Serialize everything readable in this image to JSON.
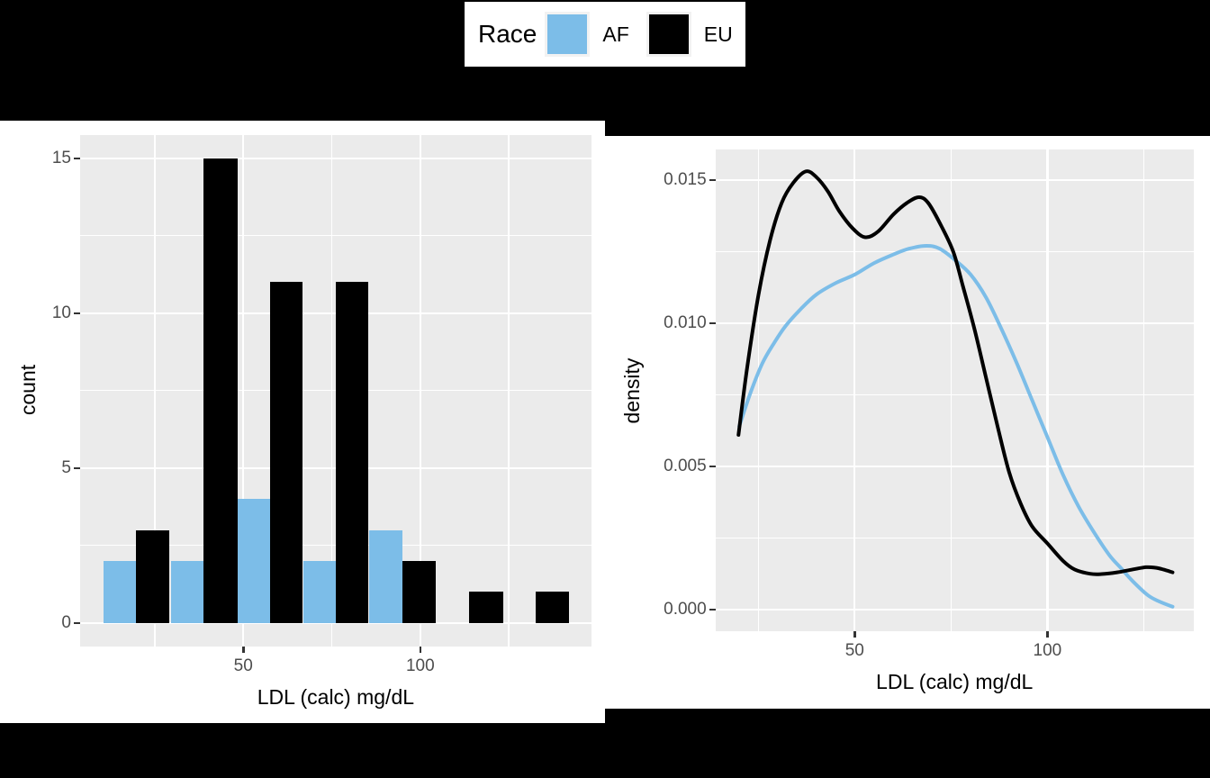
{
  "page": {
    "background": "#000000"
  },
  "legend": {
    "title": "Race",
    "entries": [
      {
        "label": "AF",
        "color": "#7CBDE8"
      },
      {
        "label": "EU",
        "color": "#000000"
      }
    ]
  },
  "colors": {
    "panel_background": "#EBEBEB",
    "gridline": "#FFFFFF",
    "tick_mark": "#333333",
    "tick_text": "#4D4D4D",
    "af_blue": "#7CBDE8",
    "eu_black": "#000000"
  },
  "chart_data": [
    {
      "type": "bar",
      "subtype": "dodged histogram",
      "title": "",
      "xlabel": "LDL (calc) mg/dL",
      "ylabel": "count",
      "xlim": [
        3.9,
        148.3
      ],
      "ylim": [
        -0.75,
        15.75
      ],
      "x_tick_values": [
        50,
        100
      ],
      "x_tick_labels": [
        "50",
        "100"
      ],
      "y_tick_values": [
        0,
        5,
        10,
        15
      ],
      "y_tick_labels": [
        "0",
        "5",
        "10",
        "15"
      ],
      "x_minor": [
        25,
        75,
        125
      ],
      "y_minor": [
        2.5,
        7.5,
        12.5
      ],
      "grid": true,
      "legend_position": "top",
      "series": [
        {
          "name": "AF",
          "color": "#7CBDE8",
          "bars": [
            {
              "x0": 10.4,
              "x1": 19.7,
              "count": 2
            },
            {
              "x0": 29.6,
              "x1": 38.7,
              "count": 2
            },
            {
              "x0": 48.4,
              "x1": 57.6,
              "count": 4
            },
            {
              "x0": 67.1,
              "x1": 76.2,
              "count": 2
            },
            {
              "x0": 85.6,
              "x1": 94.9,
              "count": 3
            }
          ]
        },
        {
          "name": "EU",
          "color": "#000000",
          "bars": [
            {
              "x0": 19.7,
              "x1": 29.1,
              "count": 3
            },
            {
              "x0": 38.7,
              "x1": 48.4,
              "count": 15
            },
            {
              "x0": 57.6,
              "x1": 66.7,
              "count": 11
            },
            {
              "x0": 76.2,
              "x1": 85.4,
              "count": 11
            },
            {
              "x0": 94.9,
              "x1": 104.4,
              "count": 2
            },
            {
              "x0": 113.8,
              "x1": 123.4,
              "count": 1
            },
            {
              "x0": 132.6,
              "x1": 142.1,
              "count": 1
            }
          ]
        }
      ]
    },
    {
      "type": "line",
      "subtype": "kernel density",
      "title": "",
      "xlabel": "LDL (calc) mg/dL",
      "ylabel": "density",
      "xlim": [
        13.9,
        137.9
      ],
      "ylim": [
        -0.000765,
        0.016065
      ],
      "x_tick_values": [
        50,
        100
      ],
      "x_tick_labels": [
        "50",
        "100"
      ],
      "y_tick_values": [
        0,
        0.005,
        0.01,
        0.015
      ],
      "y_tick_labels": [
        "0.000",
        "0.005",
        "0.010",
        "0.015"
      ],
      "x_minor": [
        25,
        75,
        125
      ],
      "y_minor": [
        0.0025,
        0.0075,
        0.0125
      ],
      "grid": true,
      "line_width": 4,
      "series": [
        {
          "name": "AF",
          "color": "#7CBDE8",
          "points": [
            [
              20,
              0.0064
            ],
            [
              23,
              0.0076
            ],
            [
              26,
              0.0086
            ],
            [
              29,
              0.0093
            ],
            [
              32,
              0.0099
            ],
            [
              36,
              0.0105
            ],
            [
              40,
              0.011
            ],
            [
              45,
              0.0114
            ],
            [
              50,
              0.0117
            ],
            [
              55,
              0.0121
            ],
            [
              60,
              0.0124
            ],
            [
              64,
              0.0126
            ],
            [
              68.6,
              0.0127
            ],
            [
              72,
              0.0126
            ],
            [
              76,
              0.0122
            ],
            [
              80,
              0.0117
            ],
            [
              84,
              0.0109
            ],
            [
              88,
              0.0098
            ],
            [
              92,
              0.0086
            ],
            [
              96,
              0.0073
            ],
            [
              100,
              0.006
            ],
            [
              104,
              0.0047
            ],
            [
              108,
              0.0036
            ],
            [
              112,
              0.0027
            ],
            [
              116,
              0.0019
            ],
            [
              119,
              0.00145
            ],
            [
              122,
              0.001
            ],
            [
              126,
              0.0005
            ],
            [
              129,
              0.00028
            ],
            [
              132.4,
              0.0001
            ]
          ]
        },
        {
          "name": "EU",
          "color": "#000000",
          "points": [
            [
              19.8,
              0.0061
            ],
            [
              22,
              0.0084
            ],
            [
              25,
              0.011
            ],
            [
              28,
              0.0129
            ],
            [
              31,
              0.0142
            ],
            [
              34,
              0.0149
            ],
            [
              37.3,
              0.0153
            ],
            [
              40,
              0.0151
            ],
            [
              43,
              0.0146
            ],
            [
              46,
              0.0139
            ],
            [
              49.5,
              0.0133
            ],
            [
              52.7,
              0.013
            ],
            [
              56,
              0.0132
            ],
            [
              60,
              0.0138
            ],
            [
              63.5,
              0.0142
            ],
            [
              66.6,
              0.0144
            ],
            [
              69,
              0.0142
            ],
            [
              72,
              0.0135
            ],
            [
              75.5,
              0.0125
            ],
            [
              78,
              0.0113
            ],
            [
              81,
              0.0098
            ],
            [
              84,
              0.0081
            ],
            [
              87,
              0.0064
            ],
            [
              90,
              0.0048
            ],
            [
              93,
              0.0037
            ],
            [
              96,
              0.0029
            ],
            [
              100,
              0.0023
            ],
            [
              104,
              0.0017
            ],
            [
              107,
              0.0014
            ],
            [
              111,
              0.00125
            ],
            [
              114,
              0.00124
            ],
            [
              118,
              0.0013
            ],
            [
              122,
              0.0014
            ],
            [
              125.5,
              0.00148
            ],
            [
              128,
              0.00146
            ],
            [
              130,
              0.0014
            ],
            [
              132.4,
              0.0013
            ]
          ]
        }
      ]
    }
  ]
}
